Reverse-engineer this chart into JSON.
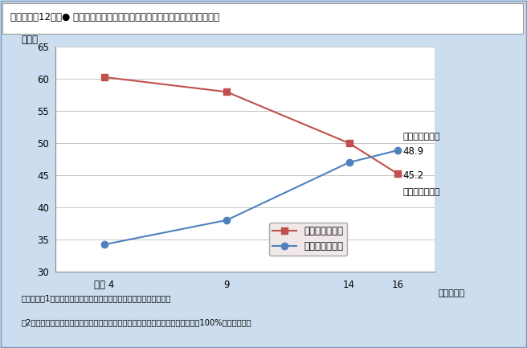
{
  "title": "第１－２－12図  ● 夫は外で働き，妻は家庭を守るべきという考え方について",
  "title_plain": "第１－２－12図　● 夫は外で働き，妻は家庭を守るべきという考え方について",
  "x_labels": [
    "平成 4",
    "9",
    "14",
    "16"
  ],
  "x_values": [
    4,
    9,
    14,
    16
  ],
  "sansei_values": [
    60.3,
    58.0,
    50.0,
    45.2
  ],
  "hantai_values": [
    34.2,
    38.0,
    47.0,
    48.9
  ],
  "sansei_color": "#c0504d",
  "hantai_color": "#4f81bd",
  "sansei_label": "賛成（男女計）",
  "hantai_label": "反対（男女計）",
  "xlabel": "（調査年）",
  "ylabel": "（％）",
  "ylim": [
    30,
    65
  ],
  "yticks": [
    30,
    35,
    40,
    45,
    50,
    55,
    60,
    65
  ],
  "annotation_hantai": "反対（男女計）",
  "annotation_sansei": "賛成（男女計）",
  "annotation_hantai_value": "48.9",
  "annotation_sansei_value": "45.2",
  "note1": "（備考）　1．内閣府「男女共同参画に関する世論調査」より作成。",
  "note2": "　2．「賛成」，「反対」の他に「わからない」との回答があるため，合計しても100%にならない。",
  "bg_color": "#ccddef",
  "plot_bg_color": "#ffffff",
  "header_bg_color": "#e8f0f8"
}
